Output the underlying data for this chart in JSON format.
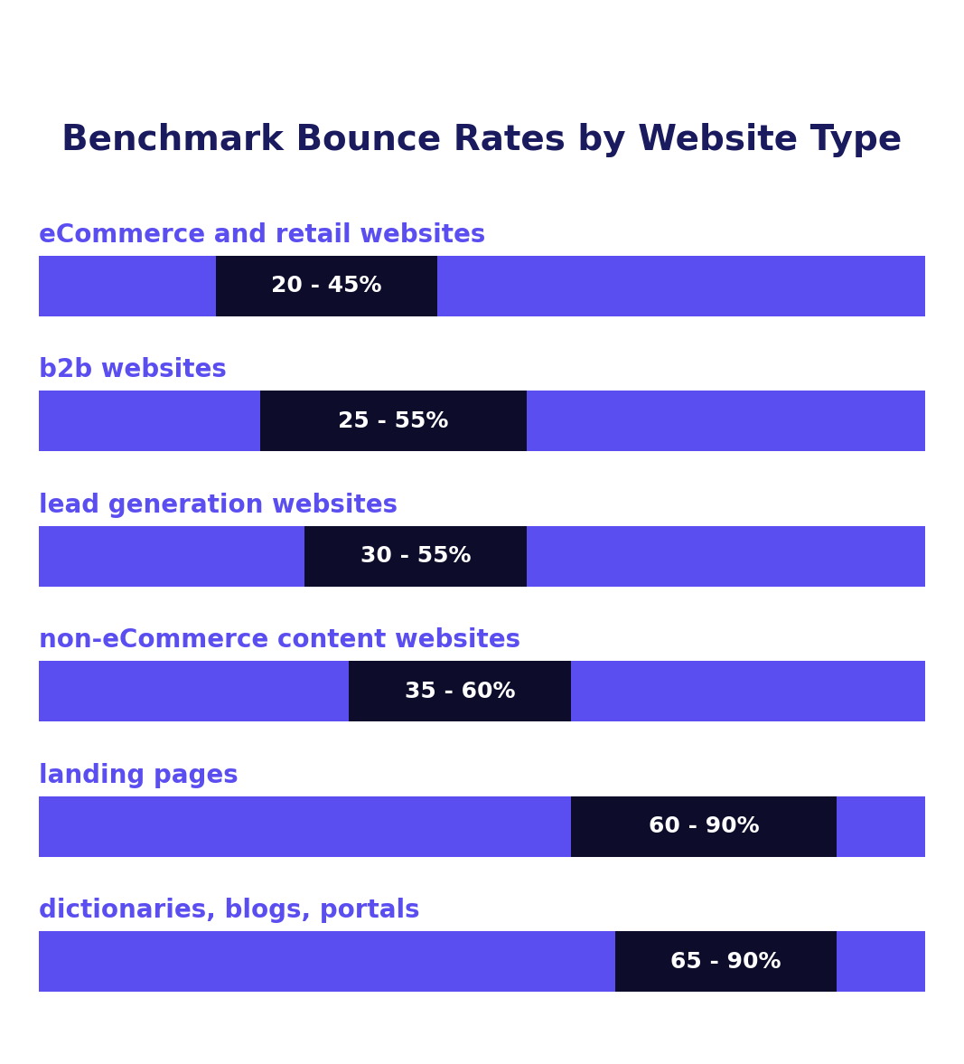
{
  "title": "Benchmark Bounce Rates by Website Type",
  "title_color": "#1a1a5e",
  "title_fontsize": 28,
  "categories": [
    "eCommerce and retail websites",
    "b2b websites",
    "lead generation websites",
    "non-eCommerce content websites",
    "landing pages",
    "dictionaries, blogs, portals"
  ],
  "ranges": [
    [
      20,
      45
    ],
    [
      25,
      55
    ],
    [
      30,
      55
    ],
    [
      35,
      60
    ],
    [
      60,
      90
    ],
    [
      65,
      90
    ]
  ],
  "labels": [
    "20 - 45%",
    "25 - 55%",
    "30 - 55%",
    "35 - 60%",
    "60 - 90%",
    "65 - 90%"
  ],
  "bar_color": "#5b4ef0",
  "range_color": "#0d0d2b",
  "label_color": "#ffffff",
  "category_color": "#5b4ef0",
  "bar_height": 0.45,
  "x_max": 100,
  "label_fontsize": 18,
  "category_fontsize": 20,
  "background_color": "#ffffff"
}
